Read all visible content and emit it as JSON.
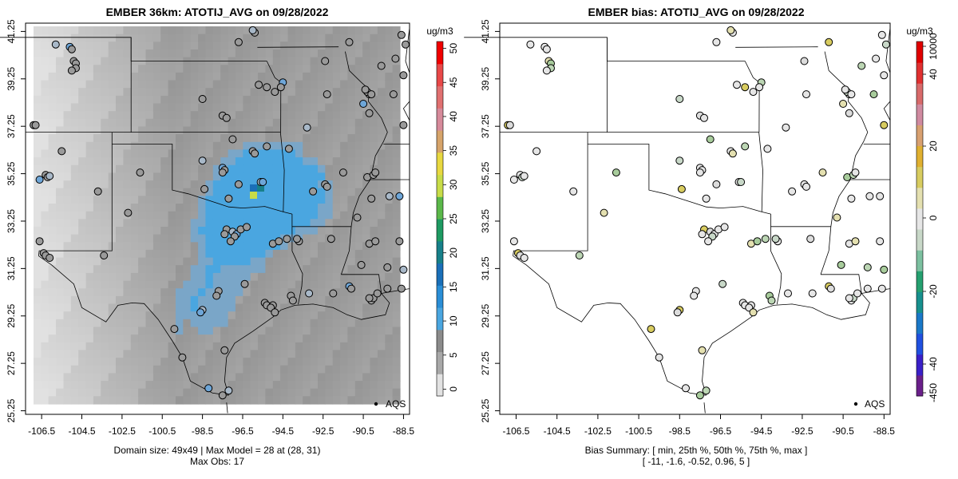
{
  "left_panel": {
    "title": "EMBER 36km: ATOTIJ_AVG on 09/28/2022",
    "footer_line1": "Domain size: 49x49 | Max Model = 28 at (28, 31)",
    "footer_line2": "Max Obs: 17",
    "legend_label": "AQS",
    "colorbar": {
      "unit": "ug/m3",
      "ticks": [
        "50",
        "45",
        "40",
        "35",
        "30",
        "25",
        "20",
        "15",
        "10",
        "5",
        "0"
      ],
      "tick_values": [
        50,
        45,
        40,
        35,
        30,
        25,
        20,
        15,
        10,
        5,
        0
      ],
      "range": [
        -1,
        51
      ],
      "colors": [
        "#e2e2e2",
        "#a8a8a8",
        "#8b8b8b",
        "#4aa6e0",
        "#2a8ed6",
        "#1a6fb8",
        "#17808a",
        "#1e9a62",
        "#5bb84a",
        "#c8dc48",
        "#e8d840",
        "#d6a46a",
        "#d68a9a",
        "#e07070",
        "#e84848",
        "#f00000"
      ]
    }
  },
  "right_panel": {
    "title": "EMBER bias: ATOTIJ_AVG on 09/28/2022",
    "footer_line1": "Bias Summary: [ min, 25th %, 50th %, 75th %, max ]",
    "footer_line2": "[ -11,   -1.6,   -0.52,   0.96,   5 ]",
    "legend_label": "AQS",
    "colorbar": {
      "unit": "ug/m3",
      "ticks": [
        "10000",
        "40",
        "20",
        "0",
        "-20",
        "-40",
        "-450"
      ],
      "colors": [
        "#6a1f8a",
        "#3a20c8",
        "#2050e0",
        "#1a78c8",
        "#17908e",
        "#25a070",
        "#7cc0a0",
        "#c8d8c8",
        "#e6e6e6",
        "#e4e0b0",
        "#d8cc60",
        "#e0b030",
        "#d8a070",
        "#d08aa0",
        "#d86a6a",
        "#e03030",
        "#e00000"
      ]
    }
  },
  "axes": {
    "lon_ticks": [
      "-106.5",
      "-104.5",
      "-102.5",
      "-100.5",
      "-98.5",
      "-96.5",
      "-94.5",
      "-92.5",
      "-90.5",
      "-88.5"
    ],
    "lon_values": [
      -106.5,
      -104.5,
      -102.5,
      -100.5,
      -98.5,
      -96.5,
      -94.5,
      -92.5,
      -90.5,
      -88.5
    ],
    "lat_ticks": [
      "41.25",
      "39.25",
      "37.25",
      "35.25",
      "33.25",
      "31.25",
      "29.25",
      "27.25",
      "25.25"
    ],
    "lat_values": [
      41.25,
      39.25,
      37.25,
      35.25,
      33.25,
      31.25,
      29.25,
      27.25,
      25.25
    ],
    "lon_range": [
      -107.3,
      -88.2
    ],
    "lat_range": [
      25.1,
      41.6
    ]
  }
}
